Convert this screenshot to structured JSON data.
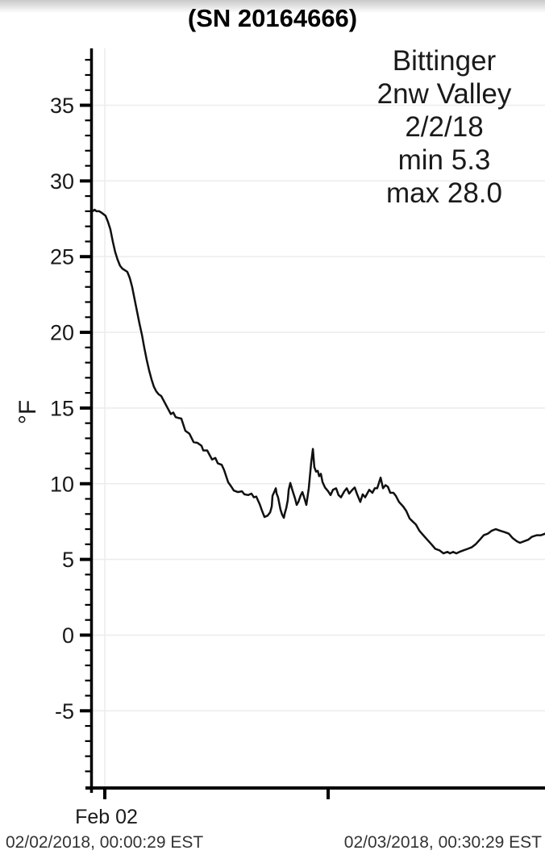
{
  "chart_data": {
    "type": "line",
    "title": "(SN 20164666)",
    "ylabel": "°F",
    "xlabel": "",
    "annotation_lines": [
      "Bittinger",
      "2nw Valley",
      "2/2/18",
      "min 5.3",
      "max 28.0"
    ],
    "station": "Bittinger 2nw Valley",
    "date": "2/2/18",
    "min_f": 5.3,
    "max_f": 28.0,
    "x_unit": "hours since 02/02/2018 00:00 EST",
    "xlim": [
      -0.9,
      23.66
    ],
    "ylim": [
      -9.6,
      38.75
    ],
    "y_ticks": [
      35,
      30,
      25,
      20,
      15,
      10,
      5,
      0,
      -5
    ],
    "x_ticks": [
      {
        "hour": 0,
        "label": "Feb 02",
        "gridline": true
      },
      {
        "hour": 12,
        "label": "",
        "gridline": false
      }
    ],
    "grid": "horizontal light gray at major y ticks, vertical at Feb 02 midnight",
    "legend": "none",
    "series": [
      {
        "name": "temperature_F",
        "points": [
          [
            -0.65,
            28.0
          ],
          [
            -0.55,
            28.1
          ],
          [
            -0.45,
            28.0
          ],
          [
            -0.3,
            28.0
          ],
          [
            -0.17,
            27.9
          ],
          [
            0.04,
            27.7
          ],
          [
            0.17,
            27.3
          ],
          [
            0.3,
            26.8
          ],
          [
            0.43,
            26.0
          ],
          [
            0.56,
            25.3
          ],
          [
            0.69,
            24.8
          ],
          [
            0.82,
            24.4
          ],
          [
            0.95,
            24.2
          ],
          [
            1.08,
            24.1
          ],
          [
            1.21,
            24.0
          ],
          [
            1.34,
            23.6
          ],
          [
            1.47,
            23.0
          ],
          [
            1.6,
            22.2
          ],
          [
            1.73,
            21.4
          ],
          [
            1.86,
            20.6
          ],
          [
            2.0,
            19.8
          ],
          [
            2.12,
            19.0
          ],
          [
            2.25,
            18.2
          ],
          [
            2.38,
            17.5
          ],
          [
            2.51,
            16.9
          ],
          [
            2.64,
            16.4
          ],
          [
            2.77,
            16.1
          ],
          [
            2.9,
            15.9
          ],
          [
            3.03,
            15.8
          ],
          [
            3.16,
            15.5
          ],
          [
            3.29,
            15.2
          ],
          [
            3.42,
            14.9
          ],
          [
            3.55,
            14.6
          ],
          [
            3.68,
            14.7
          ],
          [
            3.81,
            14.4
          ],
          [
            3.94,
            14.35
          ],
          [
            4.11,
            14.3
          ],
          [
            4.33,
            13.5
          ],
          [
            4.55,
            13.3
          ],
          [
            4.77,
            12.75
          ],
          [
            4.98,
            12.7
          ],
          [
            5.2,
            12.5
          ],
          [
            5.29,
            12.2
          ],
          [
            5.5,
            12.2
          ],
          [
            5.63,
            11.9
          ],
          [
            5.76,
            11.6
          ],
          [
            5.94,
            11.7
          ],
          [
            6.07,
            11.35
          ],
          [
            6.28,
            11.25
          ],
          [
            6.41,
            10.9
          ],
          [
            6.63,
            10.1
          ],
          [
            6.8,
            9.8
          ],
          [
            6.93,
            9.55
          ],
          [
            7.15,
            9.45
          ],
          [
            7.37,
            9.5
          ],
          [
            7.5,
            9.3
          ],
          [
            7.71,
            9.25
          ],
          [
            7.88,
            9.35
          ],
          [
            8.01,
            9.1
          ],
          [
            8.14,
            9.15
          ],
          [
            8.32,
            8.65
          ],
          [
            8.45,
            8.2
          ],
          [
            8.58,
            7.8
          ],
          [
            8.75,
            7.9
          ],
          [
            8.88,
            8.1
          ],
          [
            8.97,
            8.5
          ],
          [
            9.01,
            9.2
          ],
          [
            9.1,
            9.45
          ],
          [
            9.19,
            9.7
          ],
          [
            9.23,
            9.35
          ],
          [
            9.31,
            9.1
          ],
          [
            9.44,
            8.3
          ],
          [
            9.53,
            7.95
          ],
          [
            9.62,
            7.75
          ],
          [
            9.66,
            8.0
          ],
          [
            9.75,
            8.4
          ],
          [
            9.83,
            8.9
          ],
          [
            9.88,
            9.6
          ],
          [
            9.97,
            10.05
          ],
          [
            10.1,
            9.5
          ],
          [
            10.23,
            9.0
          ],
          [
            10.31,
            8.6
          ],
          [
            10.4,
            8.8
          ],
          [
            10.53,
            9.25
          ],
          [
            10.62,
            9.45
          ],
          [
            10.75,
            8.95
          ],
          [
            10.83,
            8.6
          ],
          [
            10.96,
            9.7
          ],
          [
            11.09,
            11.4
          ],
          [
            11.18,
            12.3
          ],
          [
            11.26,
            11.1
          ],
          [
            11.35,
            10.8
          ],
          [
            11.44,
            10.85
          ],
          [
            11.52,
            10.5
          ],
          [
            11.61,
            10.65
          ],
          [
            11.7,
            10.1
          ],
          [
            11.83,
            9.75
          ],
          [
            12.0,
            9.5
          ],
          [
            12.13,
            9.25
          ],
          [
            12.26,
            9.6
          ],
          [
            12.43,
            9.7
          ],
          [
            12.56,
            9.25
          ],
          [
            12.69,
            9.1
          ],
          [
            12.87,
            9.5
          ],
          [
            13.0,
            9.7
          ],
          [
            13.13,
            9.35
          ],
          [
            13.3,
            9.6
          ],
          [
            13.43,
            9.75
          ],
          [
            13.56,
            9.3
          ],
          [
            13.73,
            8.8
          ],
          [
            13.86,
            9.3
          ],
          [
            13.99,
            9.1
          ],
          [
            14.21,
            9.6
          ],
          [
            14.38,
            9.4
          ],
          [
            14.51,
            9.7
          ],
          [
            14.64,
            9.7
          ],
          [
            14.82,
            10.4
          ],
          [
            14.95,
            9.7
          ],
          [
            15.08,
            9.9
          ],
          [
            15.21,
            9.8
          ],
          [
            15.34,
            9.4
          ],
          [
            15.51,
            9.4
          ],
          [
            15.64,
            9.2
          ],
          [
            15.81,
            8.8
          ],
          [
            16.03,
            8.5
          ],
          [
            16.2,
            8.2
          ],
          [
            16.38,
            7.7
          ],
          [
            16.55,
            7.5
          ],
          [
            16.72,
            7.3
          ],
          [
            16.9,
            6.9
          ],
          [
            17.11,
            6.6
          ],
          [
            17.33,
            6.3
          ],
          [
            17.55,
            6.0
          ],
          [
            17.76,
            5.7
          ],
          [
            17.98,
            5.6
          ],
          [
            18.2,
            5.4
          ],
          [
            18.41,
            5.5
          ],
          [
            18.54,
            5.4
          ],
          [
            18.72,
            5.5
          ],
          [
            18.89,
            5.4
          ],
          [
            19.06,
            5.5
          ],
          [
            19.28,
            5.6
          ],
          [
            19.5,
            5.7
          ],
          [
            19.71,
            5.8
          ],
          [
            19.93,
            6.0
          ],
          [
            20.15,
            6.3
          ],
          [
            20.36,
            6.6
          ],
          [
            20.58,
            6.7
          ],
          [
            20.8,
            6.9
          ],
          [
            21.01,
            7.0
          ],
          [
            21.23,
            6.9
          ],
          [
            21.49,
            6.8
          ],
          [
            21.71,
            6.7
          ],
          [
            21.92,
            6.4
          ],
          [
            22.14,
            6.2
          ],
          [
            22.31,
            6.1
          ],
          [
            22.53,
            6.2
          ],
          [
            22.75,
            6.3
          ],
          [
            22.96,
            6.5
          ],
          [
            23.22,
            6.6
          ],
          [
            23.44,
            6.6
          ],
          [
            23.66,
            6.7
          ]
        ]
      }
    ]
  },
  "footer": {
    "start": "02/02/2018, 00:00:29 EST",
    "end": "02/03/2018, 00:30:29 EST"
  },
  "colors": {
    "line": "#101010",
    "axis": "#000000",
    "grid": "#ededed",
    "title_text": "#000000",
    "label_text": "#1a1a1a",
    "footer_text": "#333333",
    "top_gradient_from": "#c9c9c9",
    "top_gradient_to": "#ffffff"
  }
}
